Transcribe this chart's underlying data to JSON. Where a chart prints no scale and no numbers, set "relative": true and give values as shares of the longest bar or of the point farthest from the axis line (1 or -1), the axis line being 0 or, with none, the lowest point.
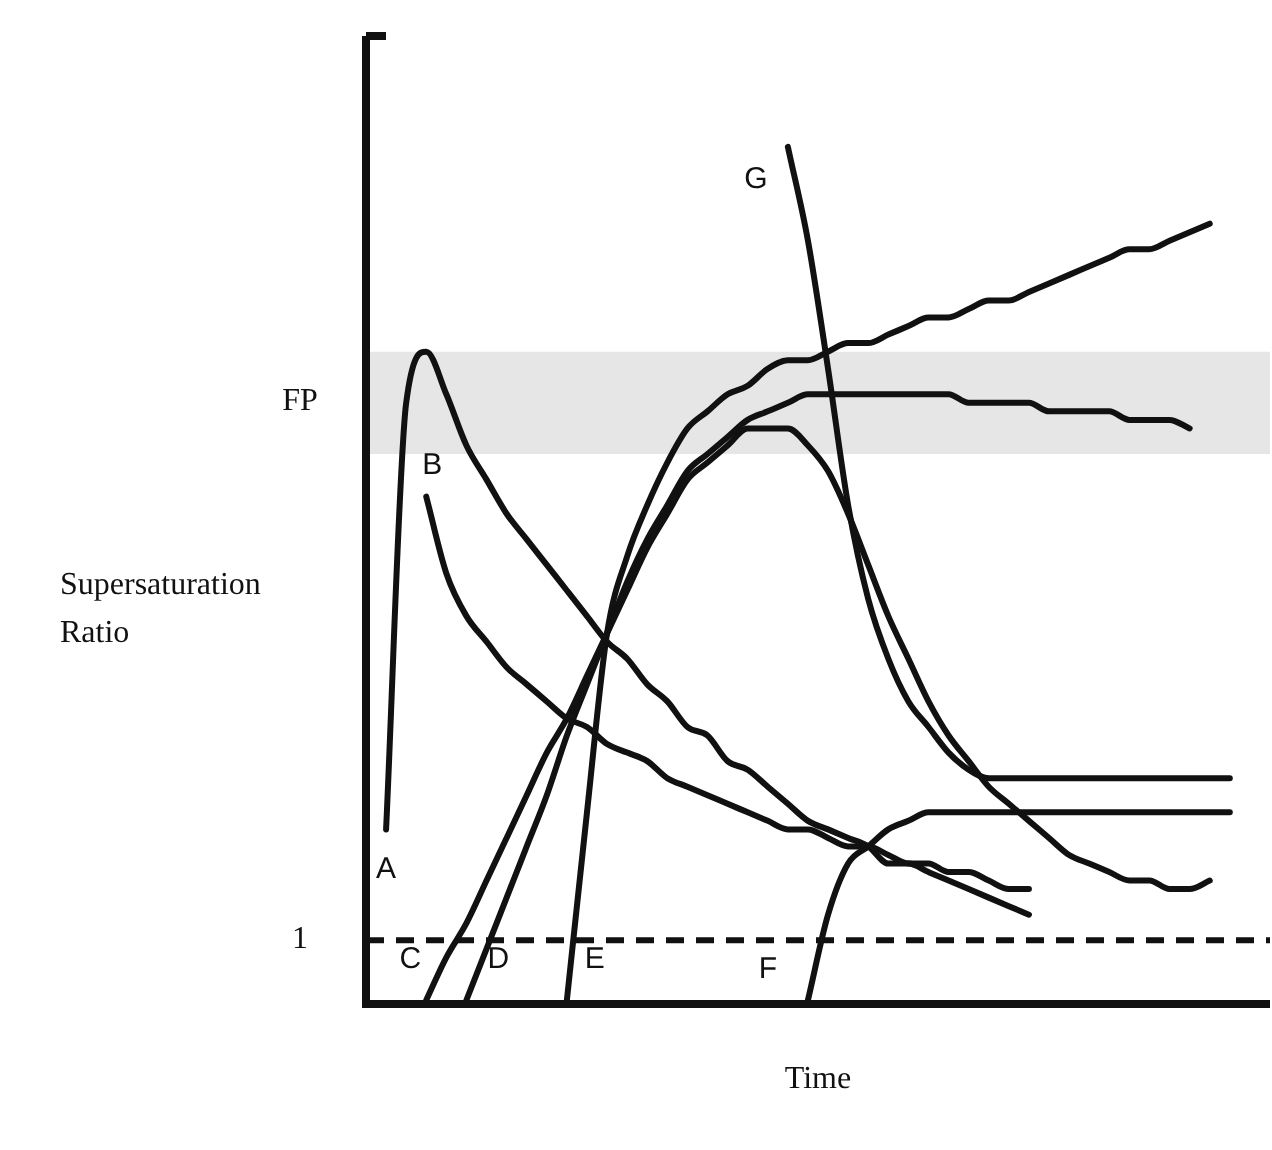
{
  "chart_data": {
    "type": "line",
    "relative": true,
    "xlabel": "Time",
    "ylabel": "Supersaturation Ratio",
    "categories": [
      null,
      null,
      null,
      null,
      null,
      null,
      null,
      null,
      null,
      null,
      null,
      null,
      null,
      null,
      null,
      null,
      null,
      null,
      null,
      null,
      null,
      null,
      null,
      null,
      null,
      null,
      null,
      null,
      null,
      null,
      null,
      null,
      null,
      null,
      null,
      null,
      null,
      null,
      null,
      null,
      null,
      null,
      null,
      null,
      null,
      null
    ],
    "series": [
      {
        "name": "A",
        "color": "#111111",
        "values": [
          null,
          0.2,
          0.7,
          0.76,
          0.71,
          0.65,
          0.61,
          0.57,
          0.54,
          0.51,
          0.48,
          0.45,
          0.42,
          0.4,
          0.37,
          0.35,
          0.32,
          0.31,
          0.28,
          0.27,
          0.25,
          0.23,
          0.21,
          0.2,
          0.19,
          0.18,
          0.16,
          0.16,
          0.15,
          0.14,
          0.13,
          0.12,
          0.11,
          0.1,
          null,
          null,
          null,
          null,
          null,
          null,
          null,
          null,
          null,
          null,
          null,
          null
        ]
      },
      {
        "name": "B",
        "color": "#111111",
        "values": [
          null,
          null,
          null,
          0.59,
          0.5,
          0.45,
          0.42,
          0.39,
          0.37,
          0.35,
          0.33,
          0.32,
          0.3,
          0.29,
          0.28,
          0.26,
          0.25,
          0.24,
          0.23,
          0.22,
          0.21,
          0.2,
          0.2,
          0.19,
          0.18,
          0.18,
          0.17,
          0.16,
          0.16,
          0.15,
          0.15,
          0.14,
          0.13,
          0.13,
          null,
          null,
          null,
          null,
          null,
          null,
          null,
          null,
          null,
          null,
          null,
          null
        ]
      },
      {
        "name": "C",
        "color": "#111111",
        "values": [
          null,
          null,
          null,
          0,
          0.05,
          0.09,
          0.14,
          0.19,
          0.24,
          0.29,
          0.33,
          0.38,
          0.43,
          0.48,
          0.53,
          0.57,
          0.61,
          0.63,
          0.65,
          0.67,
          0.67,
          0.67,
          0.65,
          0.62,
          0.57,
          0.51,
          0.45,
          0.4,
          0.35,
          0.31,
          0.28,
          0.25,
          0.23,
          0.21,
          0.19,
          0.17,
          0.16,
          0.15,
          0.14,
          0.14,
          0.13,
          0.13,
          0.14,
          null,
          null,
          null
        ]
      },
      {
        "name": "D",
        "color": "#111111",
        "values": [
          null,
          null,
          null,
          null,
          null,
          0,
          0.06,
          0.12,
          0.18,
          0.24,
          0.31,
          0.37,
          0.43,
          0.49,
          0.54,
          0.58,
          0.62,
          0.64,
          0.66,
          0.68,
          0.69,
          0.7,
          0.71,
          0.71,
          0.71,
          0.71,
          0.71,
          0.71,
          0.71,
          0.71,
          0.7,
          0.7,
          0.7,
          0.7,
          0.69,
          0.69,
          0.69,
          0.69,
          0.68,
          0.68,
          0.68,
          0.67,
          null,
          null,
          null,
          null
        ]
      },
      {
        "name": "E",
        "color": "#111111",
        "values": [
          null,
          null,
          null,
          null,
          null,
          null,
          null,
          null,
          null,
          null,
          0,
          0.22,
          0.43,
          0.52,
          0.58,
          0.63,
          0.67,
          0.69,
          0.71,
          0.72,
          0.74,
          0.75,
          0.75,
          0.76,
          0.77,
          0.77,
          0.78,
          0.79,
          0.8,
          0.8,
          0.81,
          0.82,
          0.82,
          0.83,
          0.84,
          0.85,
          0.86,
          0.87,
          0.88,
          0.88,
          0.89,
          0.9,
          0.91,
          null,
          null,
          null
        ]
      },
      {
        "name": "F",
        "color": "#111111",
        "values": [
          null,
          null,
          null,
          null,
          null,
          null,
          null,
          null,
          null,
          null,
          null,
          null,
          null,
          null,
          null,
          null,
          null,
          null,
          null,
          null,
          null,
          null,
          0,
          0.1,
          0.16,
          0.18,
          0.2,
          0.21,
          0.22,
          0.22,
          0.22,
          0.22,
          0.22,
          0.22,
          0.22,
          0.22,
          0.22,
          0.22,
          0.22,
          0.22,
          0.22,
          0.22,
          0.22,
          0.22,
          null,
          null
        ]
      },
      {
        "name": "G",
        "color": "#111111",
        "values": [
          null,
          null,
          null,
          null,
          null,
          null,
          null,
          null,
          null,
          null,
          null,
          null,
          null,
          null,
          null,
          null,
          null,
          null,
          null,
          null,
          null,
          1.0,
          0.89,
          0.74,
          0.58,
          0.47,
          0.4,
          0.35,
          0.32,
          0.29,
          0.27,
          0.26,
          0.26,
          0.26,
          0.26,
          0.26,
          0.26,
          0.26,
          0.26,
          0.26,
          0.26,
          0.26,
          0.26,
          0.26,
          null,
          null
        ]
      }
    ],
    "ref_lines": [
      {
        "axis": "y",
        "value": 0.07,
        "line_style": "dashed",
        "color": "#111111"
      }
    ],
    "annotations": [
      "1"
    ],
    "bands": [
      {
        "axis": "y",
        "from": 0.64,
        "to": 0.76,
        "label": "FP",
        "color": "#e6e6e6"
      }
    ]
  }
}
